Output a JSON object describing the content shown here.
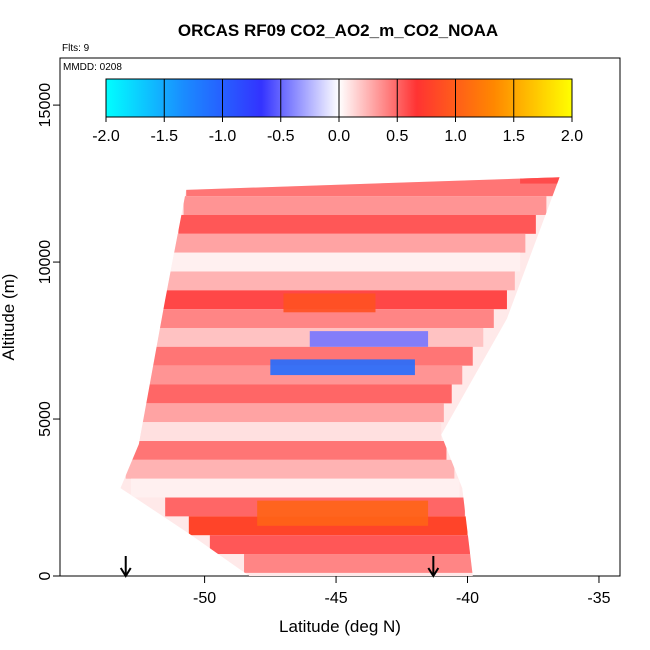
{
  "chart_data": {
    "type": "heatmap",
    "title": "ORCAS RF09 CO2_AO2_m_CO2_NOAA",
    "subtitle_flights": "Flts: 9",
    "mmdd_note": "MMDD: 0208",
    "xlabel": "Latitude (deg N)",
    "ylabel": "Altitude (m)",
    "xlim": [
      -55.5,
      -34.2
    ],
    "ylim": [
      0,
      16500
    ],
    "x_ticks": [
      -50,
      -45,
      -40,
      -35
    ],
    "x_tick_labels": [
      "-50",
      "-45",
      "-40",
      "-35"
    ],
    "y_ticks": [
      0,
      5000,
      10000,
      15000
    ],
    "y_tick_labels": [
      "0",
      "5000",
      "10000",
      "15000"
    ],
    "colorbar": {
      "min": -2.0,
      "max": 2.0,
      "ticks": [
        -2.0,
        -1.5,
        -1.0,
        -0.5,
        0.0,
        0.5,
        1.0,
        1.5,
        2.0
      ],
      "tick_labels": [
        "-2.0",
        "-1.5",
        "-1.0",
        "-0.5",
        "0.0",
        "0.5",
        "1.0",
        "1.5",
        "2.0"
      ],
      "colors": [
        "#00ffff",
        "#1a8cff",
        "#3333ff",
        "#ffffff",
        "#ff3333",
        "#ff8800",
        "#ffff00"
      ]
    },
    "data_region_polygon": [
      [
        -53.2,
        2800
      ],
      [
        -52.5,
        4200
      ],
      [
        -51.5,
        8800
      ],
      [
        -50.7,
        12300
      ],
      [
        -36.5,
        12700
      ],
      [
        -38.5,
        8200
      ],
      [
        -41.0,
        4500
      ],
      [
        -40.2,
        2800
      ],
      [
        -39.8,
        0
      ],
      [
        -48.3,
        0
      ],
      [
        -50.5,
        1300
      ]
    ],
    "bands": [
      {
        "alt": 12400,
        "lat_min": -50.7,
        "lat_max": -36.5,
        "value": 0.45
      },
      {
        "alt": 11800,
        "lat_min": -50.8,
        "lat_max": -37.0,
        "value": 0.35
      },
      {
        "alt": 11200,
        "lat_min": -51.0,
        "lat_max": -37.4,
        "value": 0.55
      },
      {
        "alt": 10600,
        "lat_min": -51.2,
        "lat_max": -37.8,
        "value": 0.3
      },
      {
        "alt": 10000,
        "lat_min": -51.4,
        "lat_max": -38.0,
        "value": 0.05
      },
      {
        "alt": 9400,
        "lat_min": -51.6,
        "lat_max": -38.2,
        "value": 0.25
      },
      {
        "alt": 8800,
        "lat_min": -51.8,
        "lat_max": -38.5,
        "value": 0.6
      },
      {
        "alt": 8200,
        "lat_min": -52.0,
        "lat_max": -39.0,
        "value": 0.4
      },
      {
        "alt": 7600,
        "lat_min": -52.1,
        "lat_max": -39.4,
        "value": 0.2
      },
      {
        "alt": 7000,
        "lat_min": -52.2,
        "lat_max": -39.8,
        "value": 0.45
      },
      {
        "alt": 6400,
        "lat_min": -52.3,
        "lat_max": -40.2,
        "value": 0.35
      },
      {
        "alt": 5800,
        "lat_min": -52.4,
        "lat_max": -40.6,
        "value": 0.5
      },
      {
        "alt": 5200,
        "lat_min": -52.5,
        "lat_max": -40.9,
        "value": 0.3
      },
      {
        "alt": 4600,
        "lat_min": -52.6,
        "lat_max": -41.0,
        "value": 0.1
      },
      {
        "alt": 4000,
        "lat_min": -52.9,
        "lat_max": -40.8,
        "value": 0.45
      },
      {
        "alt": 3400,
        "lat_min": -53.0,
        "lat_max": -40.5,
        "value": 0.25
      },
      {
        "alt": 2800,
        "lat_min": -52.8,
        "lat_max": -40.3,
        "value": 0.05
      },
      {
        "alt": 2200,
        "lat_min": -51.5,
        "lat_max": -40.1,
        "value": 0.5
      },
      {
        "alt": 1600,
        "lat_min": -50.6,
        "lat_max": -40.0,
        "value": 0.8
      },
      {
        "alt": 1000,
        "lat_min": -49.8,
        "lat_max": -39.9,
        "value": 0.55
      },
      {
        "alt": 400,
        "lat_min": -48.5,
        "lat_max": -39.8,
        "value": 0.4
      }
    ],
    "anomalies": [
      {
        "lat_min": -46.0,
        "lat_max": -41.5,
        "alt_min": 7300,
        "alt_max": 7800,
        "value": -0.45
      },
      {
        "lat_min": -47.5,
        "lat_max": -42.0,
        "alt_min": 6400,
        "alt_max": 6900,
        "value": -1.1
      },
      {
        "lat_min": -48.0,
        "lat_max": -41.5,
        "alt_min": 1600,
        "alt_max": 2400,
        "value": 1.05
      },
      {
        "lat_min": -47.0,
        "lat_max": -43.5,
        "alt_min": 8400,
        "alt_max": 9000,
        "value": 0.9
      },
      {
        "lat_min": -38.0,
        "lat_max": -36.0,
        "alt_min": 12500,
        "alt_max": 12900,
        "value": 0.6
      }
    ],
    "markers": [
      {
        "lat": -53.0,
        "label": "down-arrow"
      },
      {
        "lat": -41.3,
        "label": "down-arrow"
      }
    ]
  }
}
